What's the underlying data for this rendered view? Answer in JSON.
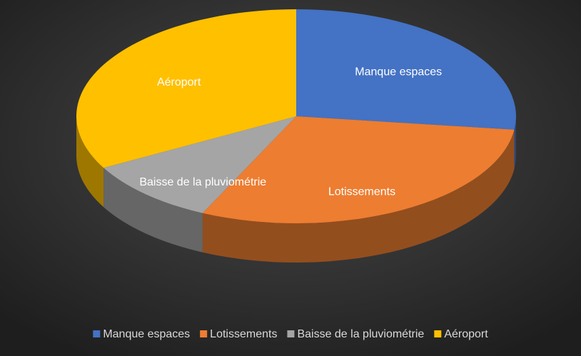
{
  "chart_data": {
    "type": "pie3d",
    "categories": [
      "Manque espaces",
      "Lotissements",
      "Baisse de la pluviométrie",
      "Aéroport"
    ],
    "values": [
      27,
      30,
      10,
      33
    ],
    "colors": [
      "#4472c4",
      "#ed7d31",
      "#a5a5a5",
      "#ffc000"
    ],
    "legend": "bottom"
  }
}
